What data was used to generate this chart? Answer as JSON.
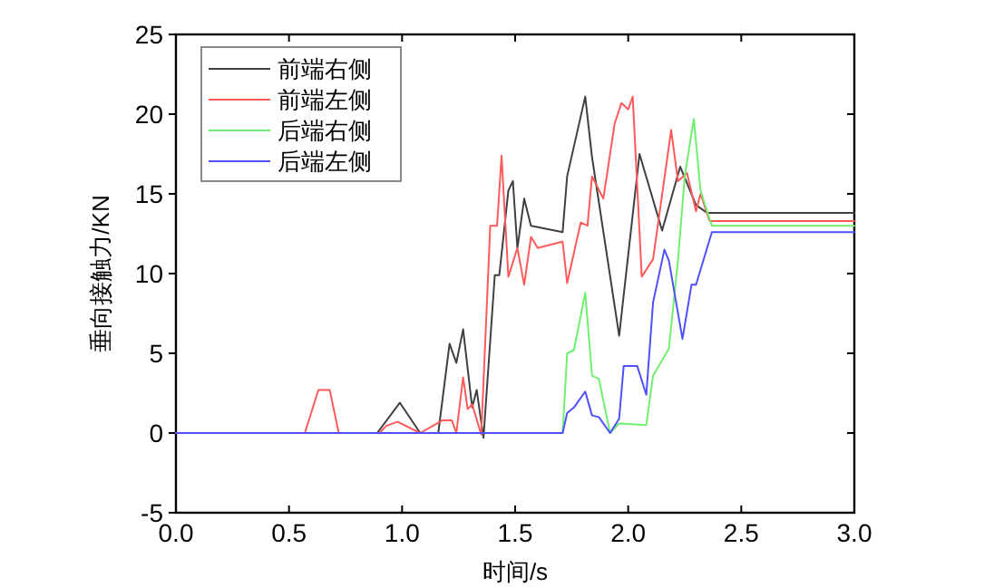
{
  "chart_data": {
    "type": "line",
    "xlabel": "时间/s",
    "ylabel": "垂向接触力/KN",
    "xlim": [
      0,
      3
    ],
    "ylim": [
      -5,
      25
    ],
    "xticks": [
      {
        "value": 0,
        "label": "0.0"
      },
      {
        "value": 0.5,
        "label": "0.5"
      },
      {
        "value": 1,
        "label": "1.0"
      },
      {
        "value": 1.5,
        "label": "1.5"
      },
      {
        "value": 2,
        "label": "2.0"
      },
      {
        "value": 2.5,
        "label": "2.5"
      },
      {
        "value": 3,
        "label": "3.0"
      }
    ],
    "yticks": [
      -5,
      0,
      5,
      10,
      15,
      20,
      25
    ],
    "grid": false,
    "legend": "top left",
    "marker": "none",
    "line_style": "solid",
    "series": [
      {
        "name": "前端右侧",
        "color": "#404040",
        "x": [
          0,
          0.89,
          0.99,
          1.08,
          1.16,
          1.21,
          1.24,
          1.27,
          1.31,
          1.33,
          1.36,
          1.41,
          1.43,
          1.47,
          1.49,
          1.51,
          1.54,
          1.57,
          1.71,
          1.73,
          1.81,
          1.84,
          1.96,
          2.05,
          2.15,
          2.23,
          2.3,
          2.35,
          3
        ],
        "values": [
          0,
          0,
          1.9,
          0,
          0,
          5.6,
          4.4,
          6.5,
          1.6,
          2.7,
          -0.3,
          9.9,
          9.9,
          15.2,
          15.8,
          11.6,
          14.7,
          13,
          12.6,
          16.1,
          21.1,
          17.3,
          6.1,
          17.5,
          12.7,
          16.7,
          14.3,
          13.8,
          13.8
        ]
      },
      {
        "name": "前端左侧",
        "color": "#ff5a5a",
        "x": [
          0,
          0.57,
          0.63,
          0.68,
          0.72,
          0.9,
          0.93,
          0.98,
          1.08,
          1.18,
          1.22,
          1.24,
          1.27,
          1.29,
          1.31,
          1.35,
          1.39,
          1.42,
          1.44,
          1.47,
          1.51,
          1.54,
          1.57,
          1.6,
          1.71,
          1.73,
          1.79,
          1.82,
          1.84,
          1.89,
          1.94,
          1.97,
          2,
          2.02,
          2.06,
          2.11,
          2.19,
          2.22,
          2.26,
          2.3,
          2.32,
          2.36,
          3
        ],
        "values": [
          0,
          0,
          2.7,
          2.7,
          0,
          0,
          0.45,
          0.7,
          0,
          0.8,
          0.8,
          0,
          3.5,
          1.5,
          1.8,
          -0.1,
          13,
          13,
          17.4,
          9.8,
          11.6,
          9.3,
          12.3,
          11.6,
          12,
          9.4,
          13.2,
          13,
          16.1,
          14.7,
          19.4,
          20.7,
          20.3,
          21.1,
          9.8,
          10.9,
          19,
          15.8,
          16.3,
          13.9,
          15,
          13.3,
          13.3
        ]
      },
      {
        "name": "后端右侧",
        "color": "#70f070",
        "x": [
          0,
          1.71,
          1.73,
          1.76,
          1.81,
          1.84,
          1.87,
          1.92,
          1.96,
          2.08,
          2.11,
          2.18,
          2.22,
          2.25,
          2.29,
          2.32,
          2.37,
          3
        ],
        "values": [
          0,
          0,
          5,
          5.2,
          8.8,
          3.6,
          3.4,
          0,
          0.6,
          0.5,
          3.6,
          5.3,
          10.8,
          16.1,
          19.7,
          15.2,
          13,
          13
        ]
      },
      {
        "name": "后端左侧",
        "color": "#5050ff",
        "x": [
          0,
          1.71,
          1.73,
          1.76,
          1.81,
          1.84,
          1.87,
          1.92,
          1.96,
          1.98,
          2.04,
          2.08,
          2.11,
          2.16,
          2.18,
          2.24,
          2.28,
          2.3,
          2.37,
          3
        ],
        "values": [
          0,
          0,
          1.25,
          1.6,
          2.6,
          1.1,
          1,
          0,
          0.9,
          4.2,
          4.2,
          2.4,
          8.2,
          11.5,
          10.8,
          5.9,
          9.3,
          9.3,
          12.6,
          12.6
        ]
      }
    ]
  }
}
